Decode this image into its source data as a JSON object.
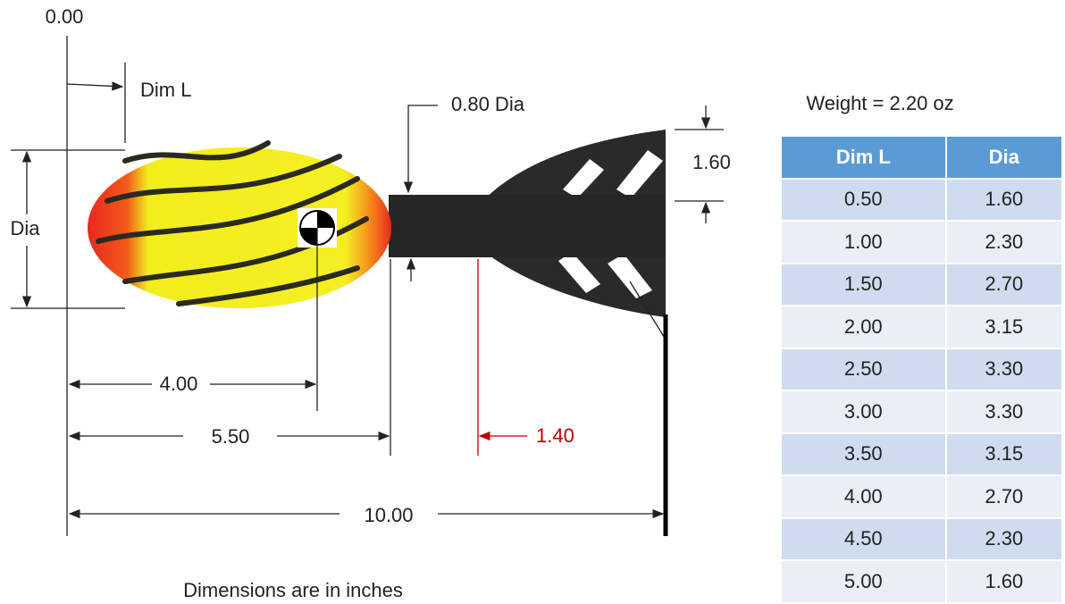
{
  "dimensions": {
    "origin": "0.00",
    "dim_l": "Dim L",
    "shaft_dia": "0.80 Dia",
    "fin_height": "1.60",
    "dia": "Dia",
    "cg": "4.00",
    "ball_length": "5.50",
    "fin_offset": "1.40",
    "total_length": "10.00"
  },
  "weight": "Weight = 2.20 oz",
  "table": {
    "header": [
      "Dim L",
      "Dia"
    ],
    "rows": [
      [
        "0.50",
        "1.60"
      ],
      [
        "1.00",
        "2.30"
      ],
      [
        "1.50",
        "2.70"
      ],
      [
        "2.00",
        "3.15"
      ],
      [
        "2.50",
        "3.30"
      ],
      [
        "3.00",
        "3.30"
      ],
      [
        "3.50",
        "3.15"
      ],
      [
        "4.00",
        "2.70"
      ],
      [
        "4.50",
        "2.30"
      ],
      [
        "5.00",
        "1.60"
      ]
    ]
  },
  "caption": "Dimensions are in inches"
}
